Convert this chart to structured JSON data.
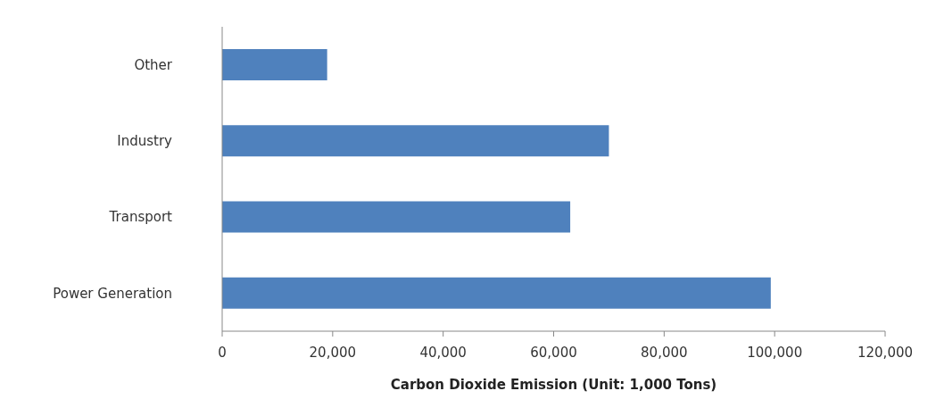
{
  "chart_data": {
    "type": "bar",
    "orientation": "horizontal",
    "xlabel": "Carbon Dioxide Emission (Unit: 1,000 Tons)",
    "categories": [
      "Other",
      "Industry",
      "Transport",
      "Power Generation"
    ],
    "values": [
      19000,
      70000,
      63000,
      99300
    ],
    "color": "#4f81bd",
    "xlim": [
      0,
      120000
    ],
    "xticks": [
      0,
      {
        "value": 20000,
        "label": "20,000"
      },
      {
        "value": 40000,
        "label": "40,000"
      },
      {
        "value": 60000,
        "label": "60,000"
      },
      {
        "value": 80000,
        "label": "80,000"
      },
      {
        "value": 100000,
        "label": "100,000"
      },
      {
        "value": 120000,
        "label": "120,000"
      }
    ],
    "grid": false,
    "legend": false
  }
}
